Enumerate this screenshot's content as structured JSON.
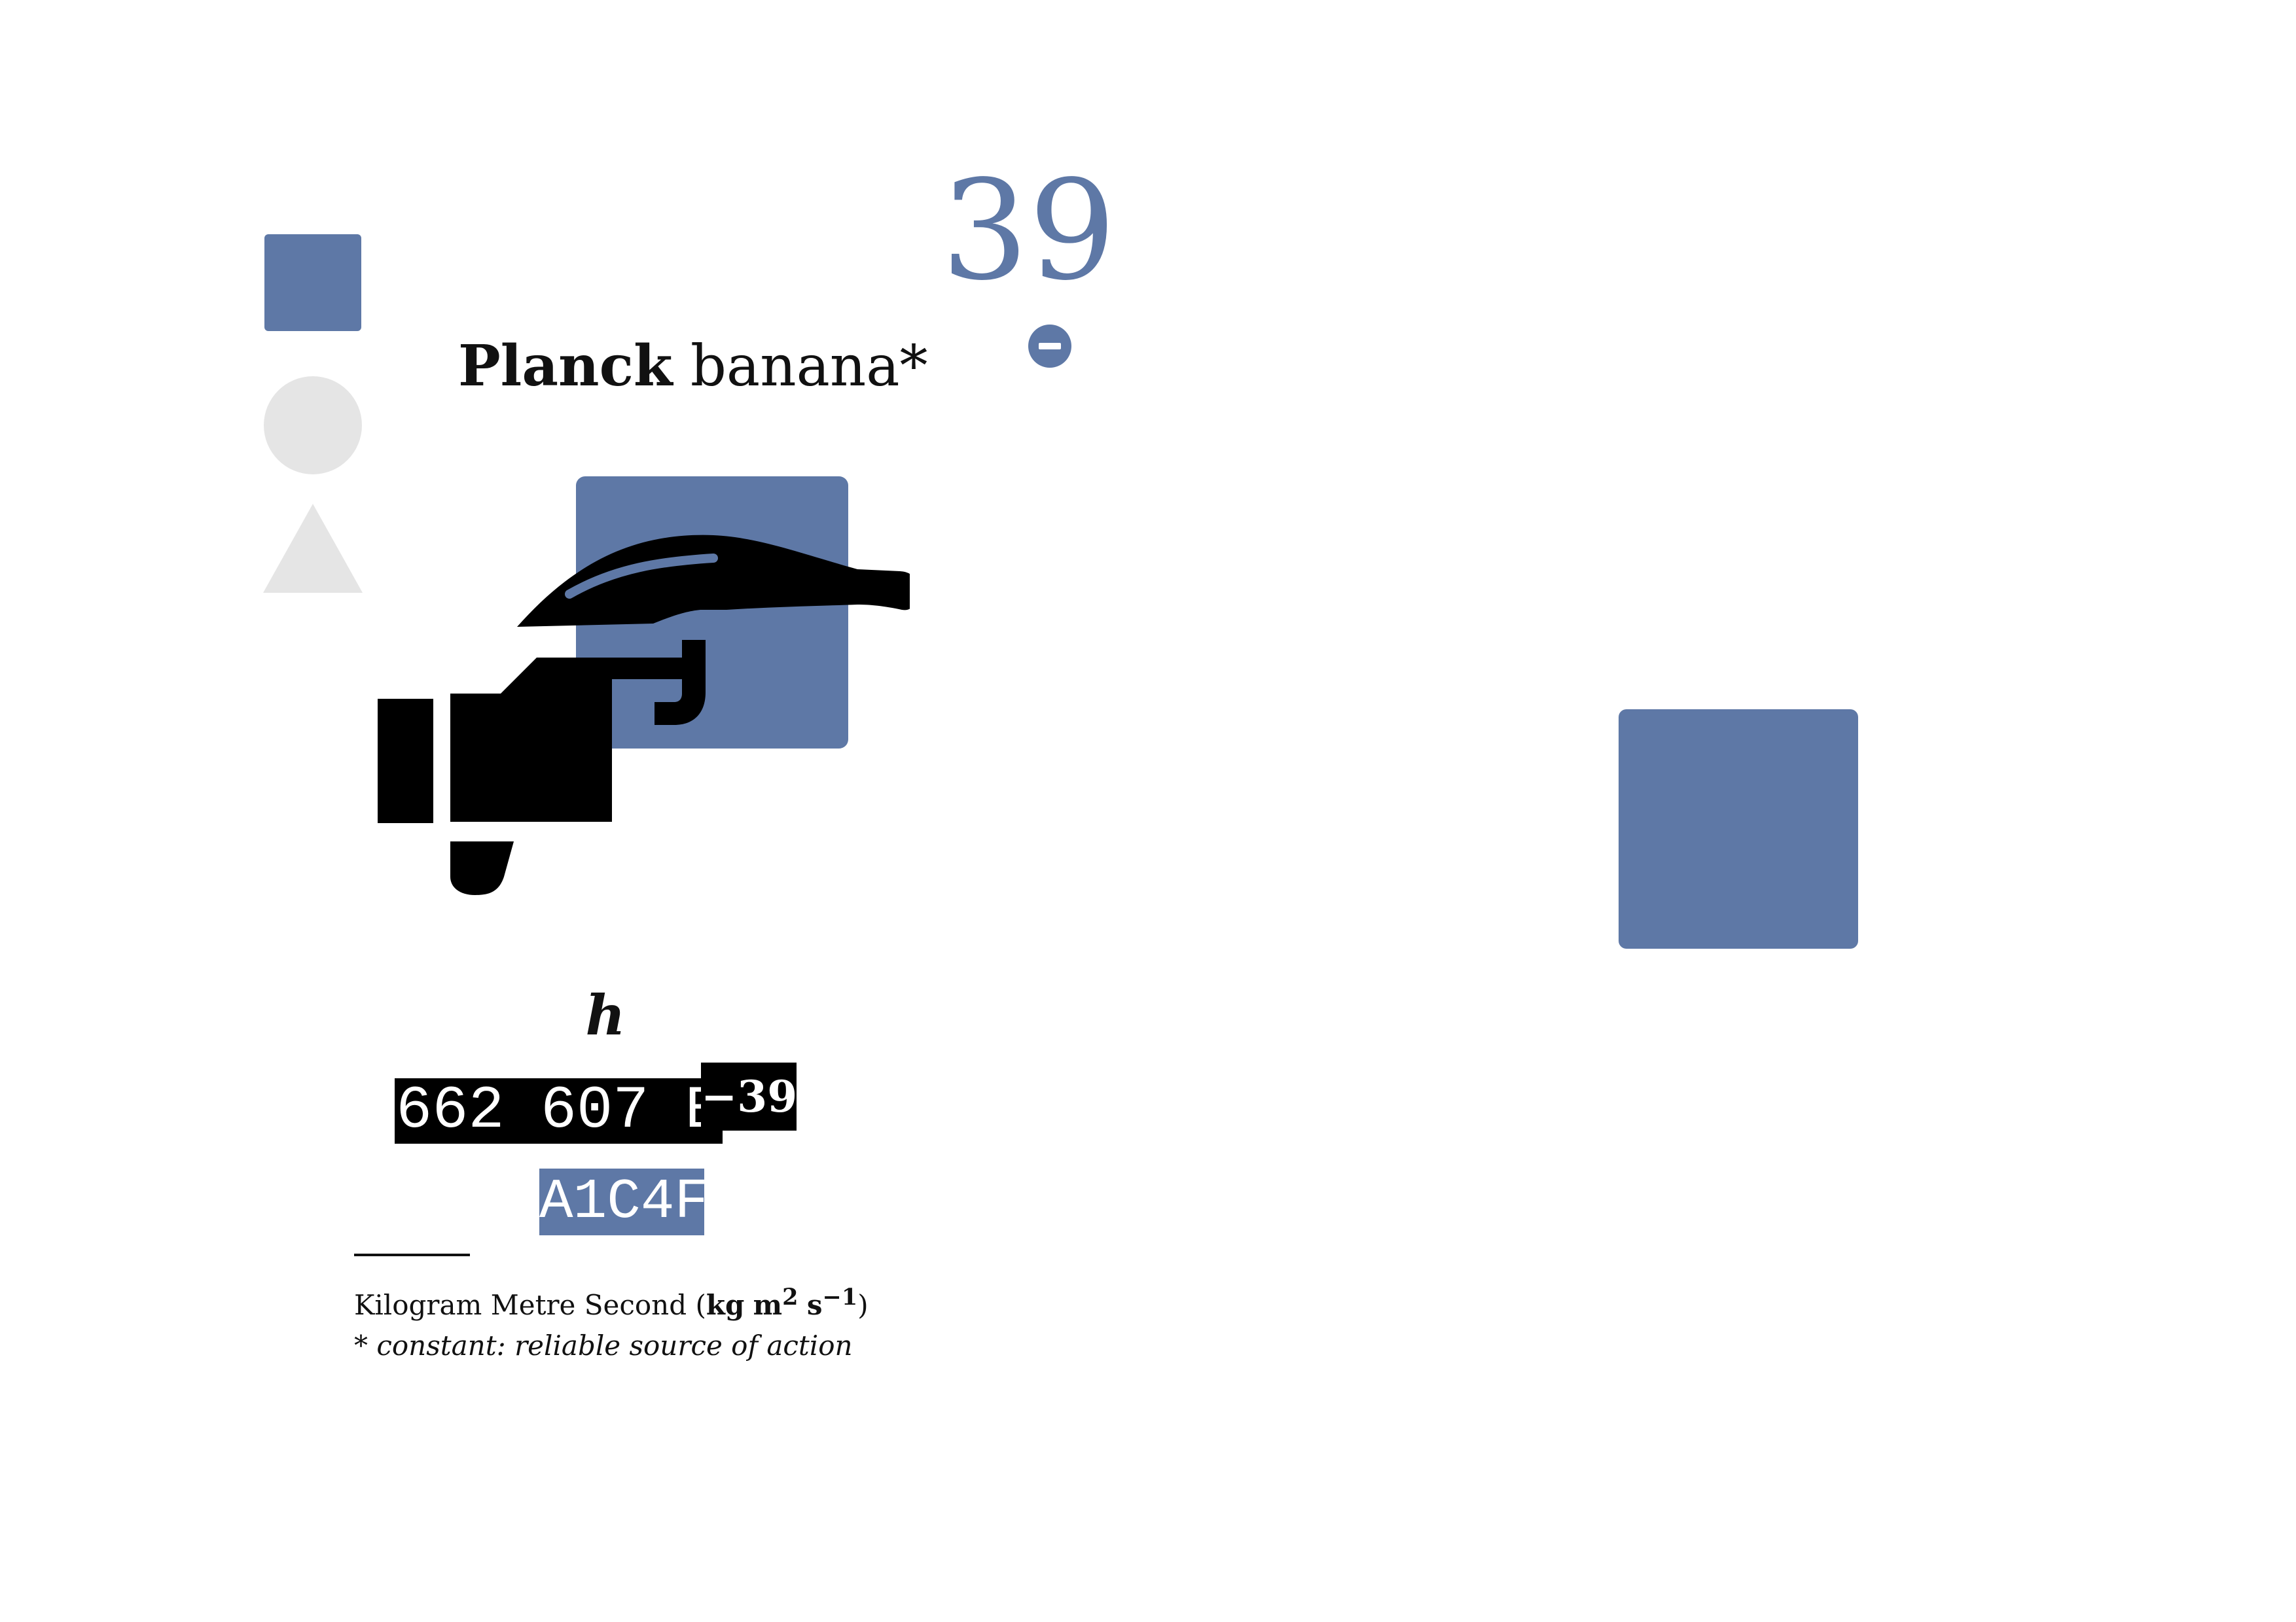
{
  "colors": {
    "accent": "#5e78a6",
    "shape_gray": "#e5e5e5",
    "ink": "#000000"
  },
  "shapes": {
    "square": "square-shape",
    "circle": "circle-shape",
    "triangle": "triangle-shape"
  },
  "header": {
    "number": "39",
    "badge_icon": "minus-circle-icon"
  },
  "title": {
    "bold": "Planck",
    "rest": " banana*"
  },
  "illustration": {
    "icon": "hand-holding-banana-icon",
    "backdrop": "square"
  },
  "constant": {
    "symbol": "h",
    "mantissa": "662 607 E",
    "exponent": "−39",
    "hex_code": "A1C4F"
  },
  "footnote": {
    "units_prefix": "Kilogram Metre Second (",
    "units_kg": "kg",
    "units_m": "m",
    "units_m_exp": "2",
    "units_s": "s",
    "units_s_exp": "−1",
    "units_suffix": ")",
    "note": "* constant: reliable source of action"
  }
}
